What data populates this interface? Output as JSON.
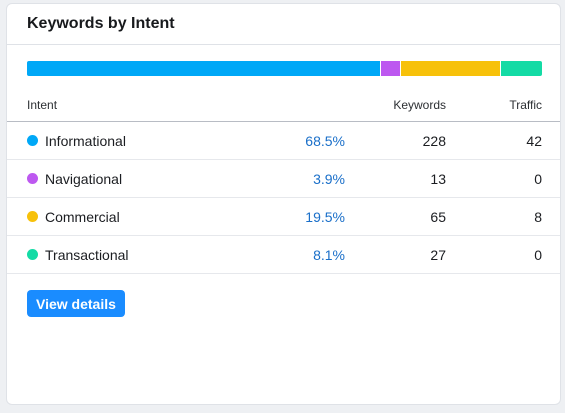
{
  "card": {
    "title": "Keywords by Intent"
  },
  "colors": {
    "informational": "#00a8f7",
    "navigational": "#bd58f0",
    "commercial": "#f7c10a",
    "transactional": "#14dba5",
    "share_text": "#1a6fc9",
    "button_bg": "#1a8cff"
  },
  "distribution_bar": [
    {
      "name": "Informational",
      "fraction": 0.685,
      "color": "#00a8f7"
    },
    {
      "name": "Navigational",
      "fraction": 0.039,
      "color": "#bd58f0"
    },
    {
      "name": "Commercial",
      "fraction": 0.195,
      "color": "#f7c10a"
    },
    {
      "name": "Transactional",
      "fraction": 0.081,
      "color": "#14dba5"
    }
  ],
  "table": {
    "headers": {
      "intent": "Intent",
      "keywords": "Keywords",
      "traffic": "Traffic"
    },
    "rows": [
      {
        "intent": "Informational",
        "share": "68.5%",
        "keywords": "228",
        "traffic": "42",
        "dot_color": "#00a8f7"
      },
      {
        "intent": "Navigational",
        "share": "3.9%",
        "keywords": "13",
        "traffic": "0",
        "dot_color": "#bd58f0"
      },
      {
        "intent": "Commercial",
        "share": "19.5%",
        "keywords": "65",
        "traffic": "8",
        "dot_color": "#f7c10a"
      },
      {
        "intent": "Transactional",
        "share": "8.1%",
        "keywords": "27",
        "traffic": "0",
        "dot_color": "#14dba5"
      }
    ]
  },
  "actions": {
    "view_details_label": "View details"
  }
}
